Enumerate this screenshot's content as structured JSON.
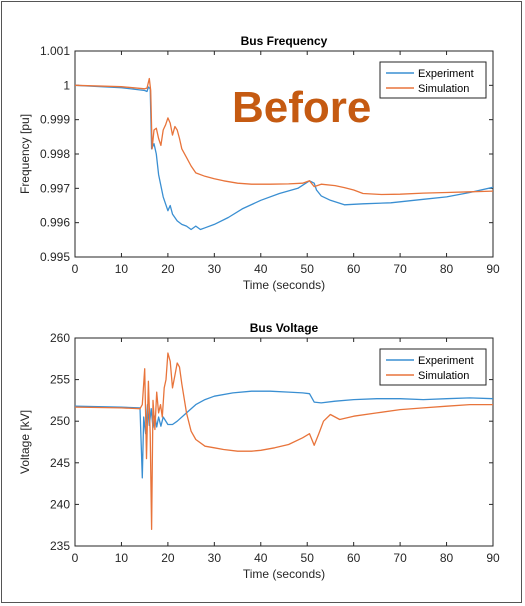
{
  "overlay_label": "Before",
  "colors": {
    "experiment": "#3a8fd2",
    "simulation": "#e8743b",
    "overlay": "#c55a11"
  },
  "chart_data": [
    {
      "type": "line",
      "title": "Bus Frequency",
      "xlabel": "Time (seconds)",
      "ylabel": "Frequency [pu]",
      "xlim": [
        0,
        90
      ],
      "ylim": [
        0.995,
        1.001
      ],
      "xticks": [
        0,
        10,
        20,
        30,
        40,
        50,
        60,
        70,
        80,
        90
      ],
      "xtick_labels": [
        "0",
        "10",
        "20",
        "30",
        "40",
        "50",
        "60",
        "70",
        "80",
        "90"
      ],
      "yticks": [
        0.995,
        0.996,
        0.997,
        0.998,
        0.999,
        1.0,
        1.001
      ],
      "ytick_labels": [
        "0.995",
        "0.996",
        "0.997",
        "0.998",
        "0.999",
        "1",
        "1.001"
      ],
      "grid": false,
      "legend": "top-right",
      "series": [
        {
          "name": "Experiment",
          "x": [
            0,
            10,
            15,
            15.5,
            15.8,
            16.2,
            16.5,
            17,
            17.5,
            18,
            19,
            20,
            20.5,
            21,
            22,
            23,
            24,
            25,
            26,
            27,
            28,
            30,
            33,
            36,
            40,
            44,
            48,
            50.5,
            51.5,
            52,
            53,
            55,
            58,
            62,
            68,
            75,
            80,
            85,
            90
          ],
          "y": [
            1.0,
            0.99993,
            0.99985,
            0.99982,
            0.99995,
            0.9999,
            0.99815,
            0.9983,
            0.998,
            0.9974,
            0.99675,
            0.99635,
            0.9965,
            0.99625,
            0.99605,
            0.99595,
            0.9959,
            0.9958,
            0.9959,
            0.9958,
            0.99585,
            0.99595,
            0.99615,
            0.9964,
            0.99665,
            0.99685,
            0.997,
            0.99722,
            0.99715,
            0.99695,
            0.99678,
            0.99665,
            0.99652,
            0.99655,
            0.99658,
            0.99668,
            0.99675,
            0.99688,
            0.99703
          ]
        },
        {
          "name": "Simulation",
          "x": [
            0,
            10,
            15,
            15.5,
            16,
            16.3,
            16.6,
            17,
            17.5,
            18,
            18.5,
            19,
            19.5,
            20,
            20.5,
            21,
            21.5,
            22,
            22.5,
            23,
            24,
            25,
            26,
            28,
            30,
            32,
            35,
            38,
            42,
            46,
            49,
            50.5,
            51.5,
            53,
            56,
            58,
            60,
            62,
            66,
            70,
            75,
            80,
            85,
            90
          ],
          "y": [
            1.0,
            0.99996,
            0.9999,
            0.99992,
            1.0002,
            0.99985,
            0.99815,
            0.9987,
            0.99875,
            0.99845,
            0.99825,
            0.9987,
            0.99885,
            0.99905,
            0.9989,
            0.99855,
            0.9988,
            0.9987,
            0.99845,
            0.99815,
            0.9979,
            0.99765,
            0.99745,
            0.99735,
            0.99728,
            0.99722,
            0.99715,
            0.99712,
            0.99712,
            0.99713,
            0.99715,
            0.99722,
            0.99705,
            0.99712,
            0.99708,
            0.99702,
            0.99695,
            0.99685,
            0.99682,
            0.99683,
            0.99686,
            0.99688,
            0.9969,
            0.99692
          ]
        }
      ]
    },
    {
      "type": "line",
      "title": "Bus Voltage",
      "xlabel": "Time (seconds)",
      "ylabel": "Voltage [kV]",
      "xlim": [
        0,
        90
      ],
      "ylim": [
        235,
        260
      ],
      "xticks": [
        0,
        10,
        20,
        30,
        40,
        50,
        60,
        70,
        80,
        90
      ],
      "xtick_labels": [
        "0",
        "10",
        "20",
        "30",
        "40",
        "50",
        "60",
        "70",
        "80",
        "90"
      ],
      "yticks": [
        235,
        240,
        245,
        250,
        255,
        260
      ],
      "ytick_labels": [
        "235",
        "240",
        "245",
        "250",
        "255",
        "260"
      ],
      "grid": false,
      "legend": "top-right",
      "series": [
        {
          "name": "Experiment",
          "x": [
            0,
            10,
            14,
            14.5,
            14.8,
            15.2,
            15.6,
            16,
            16.4,
            16.8,
            17.2,
            17.6,
            18,
            18.5,
            19,
            20,
            21,
            22,
            24,
            26,
            28,
            30,
            34,
            38,
            42,
            46,
            49,
            50.5,
            51.5,
            53,
            56,
            60,
            65,
            70,
            75,
            80,
            85,
            90
          ],
          "y": [
            251.8,
            251.7,
            251.6,
            243.2,
            250.5,
            248.5,
            252.0,
            249.5,
            251.5,
            249.2,
            250.6,
            249.3,
            250.5,
            249.4,
            250.5,
            249.6,
            249.6,
            250.0,
            251.0,
            252.0,
            252.6,
            253.0,
            253.4,
            253.6,
            253.6,
            253.5,
            253.4,
            253.3,
            252.3,
            252.2,
            252.4,
            252.6,
            252.7,
            252.7,
            252.6,
            252.7,
            252.8,
            252.7
          ]
        },
        {
          "name": "Simulation",
          "x": [
            0,
            10,
            14,
            14.5,
            15,
            15.4,
            15.8,
            16.2,
            16.5,
            16.8,
            17.2,
            17.6,
            18,
            18.4,
            18.8,
            19.2,
            19.6,
            20,
            20.5,
            21,
            21.5,
            22,
            22.5,
            23,
            24,
            25,
            26,
            28,
            30,
            32,
            35,
            38,
            40,
            43,
            46,
            49,
            50.5,
            51.5,
            52.5,
            53.5,
            55,
            57,
            60,
            65,
            70,
            75,
            80,
            85,
            90
          ],
          "y": [
            251.7,
            251.6,
            251.5,
            252.0,
            256.3,
            245.5,
            254.8,
            248.5,
            237.0,
            252.5,
            249.0,
            253.5,
            251.0,
            252.0,
            250.5,
            254.0,
            255.0,
            258.2,
            257.2,
            254.0,
            255.5,
            257.0,
            256.5,
            254.5,
            251.0,
            248.8,
            247.8,
            247.0,
            246.8,
            246.6,
            246.4,
            246.4,
            246.5,
            246.8,
            247.2,
            248.0,
            248.5,
            247.1,
            248.5,
            250.0,
            250.8,
            250.2,
            250.6,
            251.0,
            251.4,
            251.6,
            251.8,
            252.0,
            252.0
          ]
        }
      ]
    }
  ]
}
